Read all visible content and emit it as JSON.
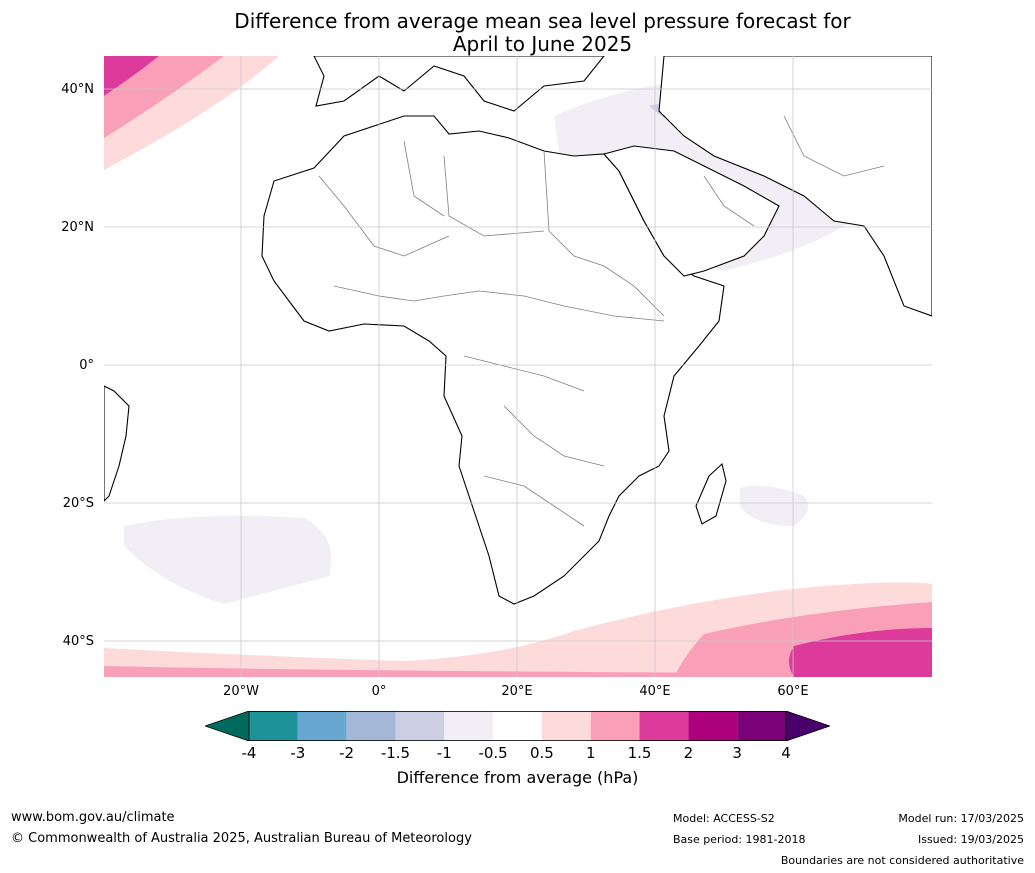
{
  "title": {
    "line1": "Difference from average mean sea level pressure forecast for",
    "line2": "April to June 2025"
  },
  "map": {
    "region": "Africa",
    "lat_labels": [
      "40°N",
      "20°N",
      "0°",
      "20°S",
      "40°S"
    ],
    "lon_labels": [
      "20°W",
      "0°",
      "20°E",
      "40°E",
      "60°E"
    ],
    "colors": {
      "land": "#ffffff",
      "coast": "#000000",
      "borders": "#808080",
      "grid": "#c8c8c8"
    }
  },
  "legend": {
    "title": "Difference from average (hPa)",
    "ticks": [
      "-4",
      "-3",
      "-2",
      "-1.5",
      "-1",
      "-0.5",
      "0.5",
      "1",
      "1.5",
      "2",
      "3",
      "4"
    ],
    "colors": [
      "#006b5c",
      "#1c9399",
      "#68a7d0",
      "#a5b7d6",
      "#cdd0e5",
      "#f1eef6",
      "#ffffff",
      "#fddbdb",
      "#f99fb8",
      "#dc3b9b",
      "#ae017e",
      "#7a0177",
      "#49006a"
    ]
  },
  "footer": {
    "website": "www.bom.gov.au/climate",
    "copyright": "© Commonwealth of Australia 2025, Australian Bureau of Meteorology",
    "model": "Model: ACCESS-S2",
    "base_period": "Base period: 1981-2018",
    "model_run": "Model run: 17/03/2025",
    "issued": "Issued: 19/03/2025",
    "disclaimer": "Boundaries are not considered authoritative"
  }
}
